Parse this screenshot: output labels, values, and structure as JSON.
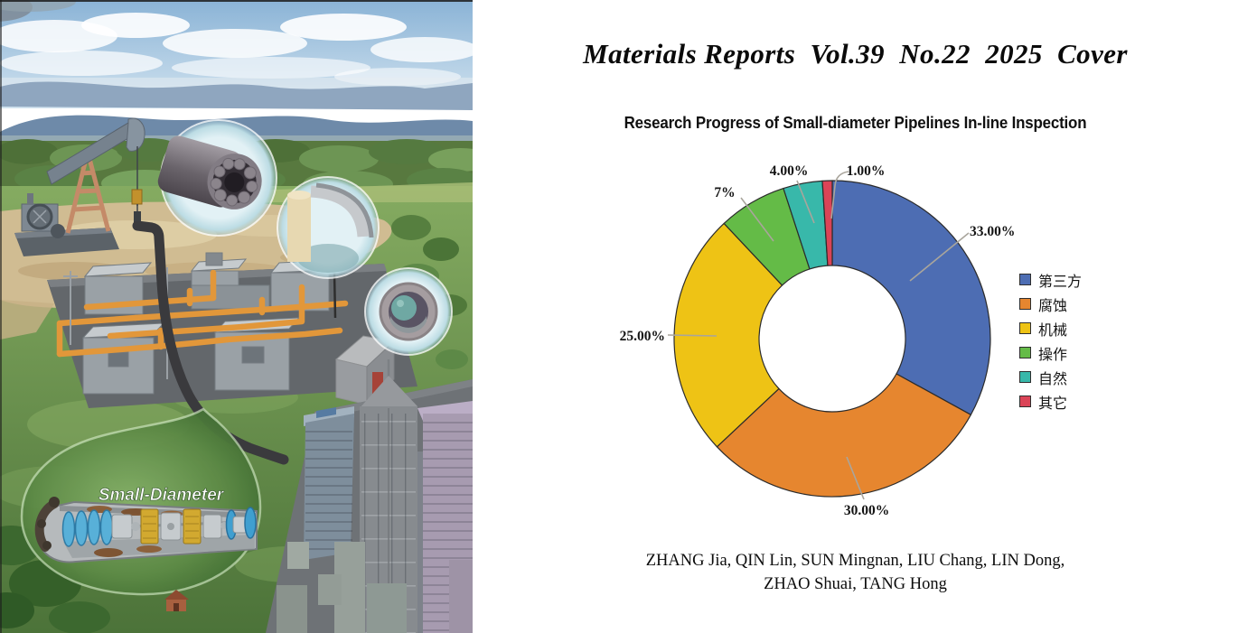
{
  "cover": {
    "journal_line": "Materials Reports  Vol.39  No.22  2025  Cover",
    "article_title": "Research Progress of Small-diameter Pipelines In-line Inspection",
    "authors_line1": "ZHANG Jia, QIN Lin, SUN Mingnan, LIU Chang, LIN Dong,",
    "authors_line2": "ZHAO Shuai, TANG Hong"
  },
  "illustration": {
    "callout_label": "Small-Diameter"
  },
  "chart_data": {
    "type": "pie",
    "subtype": "donut",
    "categories": [
      "第三方",
      "腐蚀",
      "机械",
      "操作",
      "自然",
      "其它"
    ],
    "values": [
      33,
      30,
      25,
      7,
      4,
      1
    ],
    "labels": [
      "33.00%",
      "30.00%",
      "25.00%",
      "7%",
      "4.00%",
      "1.00%"
    ],
    "colors": [
      "#4d6db3",
      "#e6862f",
      "#eec315",
      "#64bb47",
      "#38b8aa",
      "#db4457"
    ],
    "legend_position": "right",
    "start_angle_deg": -90,
    "direction": "clockwise",
    "inner_radius_ratio": 0.46
  }
}
